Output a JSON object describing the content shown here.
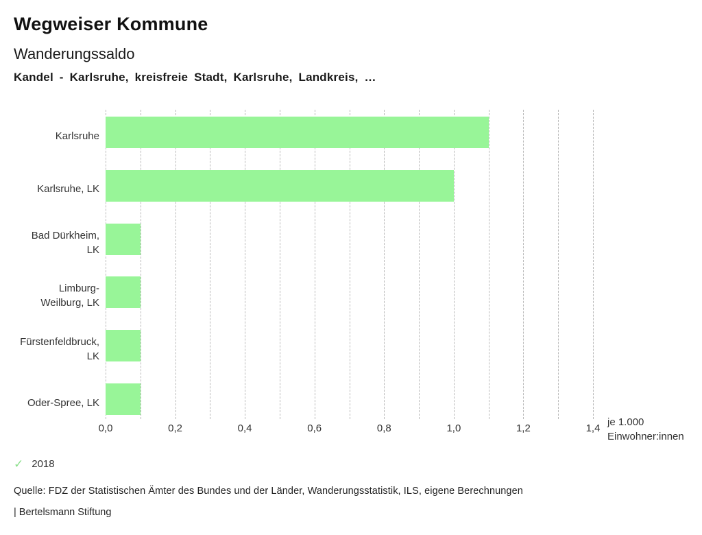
{
  "header": {
    "app_title": "Wegweiser Kommune",
    "indicator_title": "Wanderungssaldo",
    "selection_line": "Kandel - Karlsruhe, kreisfreie Stadt, Karlsruhe, Landkreis, …"
  },
  "chart_data": {
    "type": "bar",
    "orientation": "horizontal",
    "title": "Wanderungssaldo",
    "categories": [
      "Karlsruhe",
      "Karlsruhe, LK",
      "Bad Dürkheim,\nLK",
      "Limburg-\nWeilburg, LK",
      "Fürstenfeldbruck,\nLK",
      "Oder-Spree, LK"
    ],
    "series": [
      {
        "name": "2018",
        "values": [
          1.1,
          1.0,
          0.1,
          0.1,
          0.1,
          0.1
        ]
      }
    ],
    "xlim": [
      0.0,
      1.4
    ],
    "x_grid_step": 0.1,
    "x_tick_step": 0.2,
    "x_tick_labels": [
      "0,0",
      "0,2",
      "0,4",
      "0,6",
      "0,8",
      "1,0",
      "1,2",
      "1,4"
    ],
    "x_unit_label": "je 1.000\nEinwohner:innen",
    "grid": "vertical-dashed",
    "gridline_color": "#b9b9b9",
    "bar_color": "#98f598",
    "legend_position": "bottom-left"
  },
  "legend": {
    "check_icon": "✓",
    "check_color": "#8ce08c",
    "label": "2018"
  },
  "footer": {
    "source": "Quelle: FDZ der Statistischen Ämter des Bundes und der Länder, Wanderungsstatistik, ILS, eigene Berechnungen",
    "attribution": "| Bertelsmann Stiftung"
  }
}
